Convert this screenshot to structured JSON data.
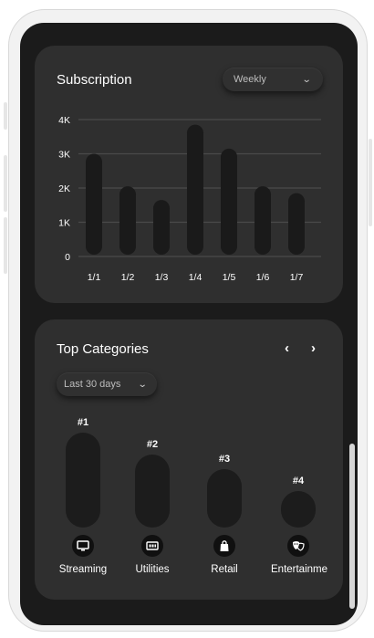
{
  "subscription": {
    "title": "Subscription",
    "period_selected": "Weekly"
  },
  "chart_data": {
    "type": "bar",
    "title": "Subscription",
    "categories": [
      "1/1",
      "1/2",
      "1/3",
      "1/4",
      "1/5",
      "1/6",
      "1/7"
    ],
    "values": [
      3000,
      2050,
      1650,
      3850,
      3150,
      2050,
      1850
    ],
    "ylim": [
      0,
      4000
    ],
    "yticks": [
      0,
      1000,
      2000,
      3000,
      4000
    ],
    "ytick_labels": [
      "0",
      "1K",
      "2K",
      "3K",
      "4K"
    ],
    "grid": true,
    "bar_color": "#1a1a1a",
    "grid_color": "#4a4a4a"
  },
  "top_categories": {
    "title": "Top Categories",
    "period_selected": "Last 30 days",
    "items": [
      {
        "rank": "#1",
        "label": "Streaming",
        "icon": "tv-icon",
        "share": 1.0
      },
      {
        "rank": "#2",
        "label": "Utilities",
        "icon": "meter-icon",
        "share": 0.78
      },
      {
        "rank": "#3",
        "label": "Retail",
        "icon": "shopping-bag-icon",
        "share": 0.6
      },
      {
        "rank": "#4",
        "label": "Entertainme",
        "icon": "theater-mask-icon",
        "share": 0.37
      }
    ]
  },
  "colors": {
    "screen": "#1b1b1b",
    "card": "#2f2f2f",
    "text": "#ffffff"
  }
}
